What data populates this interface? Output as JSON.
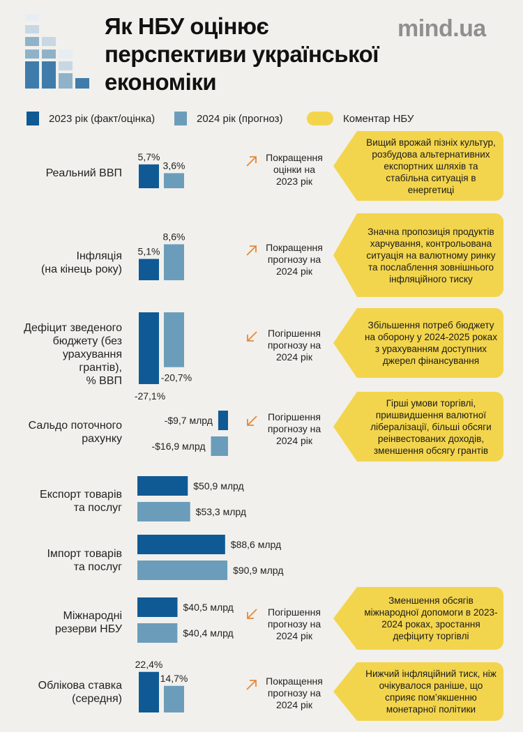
{
  "header": {
    "title": "Як НБУ оцінює перспективи української економіки",
    "brand": "mind.ua"
  },
  "legend": {
    "series_2023": "2023 рік (факт/оцінка)",
    "series_2024": "2024 рік (прогноз)",
    "comment": "Коментар НБУ"
  },
  "colors": {
    "series_2023": "#0f5a94",
    "series_2024": "#6b9dbb",
    "comment": "#f3d54d",
    "arrow": "#e5883a",
    "background": "#f1f0ec"
  },
  "rows": [
    {
      "label": "Реальний ВВП",
      "trend": "Покращення\nоцінки на\n2023 рік",
      "trend_dir": "up",
      "note": "Вищий врожай пізніх культур, розбудова альтернативних експортних шляхів та стабільна ситуація в енергетиці"
    },
    {
      "label": "Інфляція\n(на кінець року)",
      "trend": "Покращення\nпрогнозу на\n2024 рік",
      "trend_dir": "up",
      "note": "Значна пропозиція продуктів харчування, контрольована ситуація на валютному ринку та послаблення зовнішнього інфляційного тиску"
    },
    {
      "label": "Дефіцит зведеного\nбюджету (без\nурахування\nгрантів),\n% ВВП",
      "trend": "Погіршення\nпрогнозу на\n2024 рік",
      "trend_dir": "down",
      "note": "Збільшення потреб бюджету на оборону у 2024-2025 роках з урахуванням доступних джерел фінансування"
    },
    {
      "label": "Сальдо поточного\nрахунку",
      "trend": "Погіршення\nпрогнозу на\n2024 рік",
      "trend_dir": "down",
      "note": "Гірші умови торгівлі, пришвидшення валютної лібералізації, більші обсяги реінвестованих доходів, зменшення обсягу грантів"
    },
    {
      "label": "Експорт товарів\nта послуг",
      "trend": "",
      "trend_dir": "",
      "note": ""
    },
    {
      "label": "Імпорт товарів\nта послуг",
      "trend": "",
      "trend_dir": "",
      "note": ""
    },
    {
      "label": "Міжнародні\nрезерви НБУ",
      "trend": "Погіршення\nпрогнозу на\n2024 рік",
      "trend_dir": "down",
      "note": "Зменшення обсягів міжнародної допомоги в 2023-2024 роках, зростання дефіциту торгівлі"
    },
    {
      "label": "Облікова ставка\n(середня)",
      "trend": "Покращення\nпрогнозу на\n2024 рік",
      "trend_dir": "up",
      "note": "Нижчий інфляційний тиск, ніж очікувалося раніше, що сприяє пом’якшенню монетарної політики"
    }
  ],
  "chart_data": [
    {
      "type": "bar",
      "orientation": "vertical",
      "category": "Реальний ВВП",
      "series": [
        {
          "name": "2023 рік (факт/оцінка)",
          "value": 5.7,
          "label": "5,7%"
        },
        {
          "name": "2024 рік (прогноз)",
          "value": 3.6,
          "label": "3,6%"
        }
      ]
    },
    {
      "type": "bar",
      "orientation": "vertical",
      "category": "Інфляція (на кінець року)",
      "series": [
        {
          "name": "2023 рік (факт/оцінка)",
          "value": 5.1,
          "label": "5,1%"
        },
        {
          "name": "2024 рік (прогноз)",
          "value": 8.6,
          "label": "8,6%"
        }
      ]
    },
    {
      "type": "bar",
      "orientation": "vertical",
      "category": "Дефіцит зведеного бюджету (без урахування грантів), % ВВП",
      "series": [
        {
          "name": "2023 рік (факт/оцінка)",
          "value": -27.1,
          "label": "-27,1%"
        },
        {
          "name": "2024 рік (прогноз)",
          "value": -20.7,
          "label": "-20,7%"
        }
      ]
    },
    {
      "type": "bar",
      "orientation": "horizontal",
      "category": "Сальдо поточного рахунку",
      "series": [
        {
          "name": "2023 рік (факт/оцінка)",
          "value": -9.7,
          "label": "-$9,7 млрд"
        },
        {
          "name": "2024 рік (прогноз)",
          "value": -16.9,
          "label": "-$16,9 млрд"
        }
      ]
    },
    {
      "type": "bar",
      "orientation": "horizontal",
      "category": "Експорт товарів та послуг",
      "series": [
        {
          "name": "2023 рік (факт/оцінка)",
          "value": 50.9,
          "label": "$50,9 млрд"
        },
        {
          "name": "2024 рік (прогноз)",
          "value": 53.3,
          "label": "$53,3 млрд"
        }
      ]
    },
    {
      "type": "bar",
      "orientation": "horizontal",
      "category": "Імпорт товарів та послуг",
      "series": [
        {
          "name": "2023 рік (факт/оцінка)",
          "value": 88.6,
          "label": "$88,6 млрд"
        },
        {
          "name": "2024 рік (прогноз)",
          "value": 90.9,
          "label": "$90,9 млрд"
        }
      ]
    },
    {
      "type": "bar",
      "orientation": "horizontal",
      "category": "Міжнародні резерви НБУ",
      "series": [
        {
          "name": "2023 рік (факт/оцінка)",
          "value": 40.5,
          "label": "$40,5 млрд"
        },
        {
          "name": "2024 рік (прогноз)",
          "value": 40.4,
          "label": "$40,4 млрд"
        }
      ]
    },
    {
      "type": "bar",
      "orientation": "vertical",
      "category": "Облікова ставка (середня)",
      "series": [
        {
          "name": "2023 рік (факт/оцінка)",
          "value": 22.4,
          "label": "22,4%"
        },
        {
          "name": "2024 рік (прогноз)",
          "value": 14.7,
          "label": "14,7%"
        }
      ]
    }
  ]
}
